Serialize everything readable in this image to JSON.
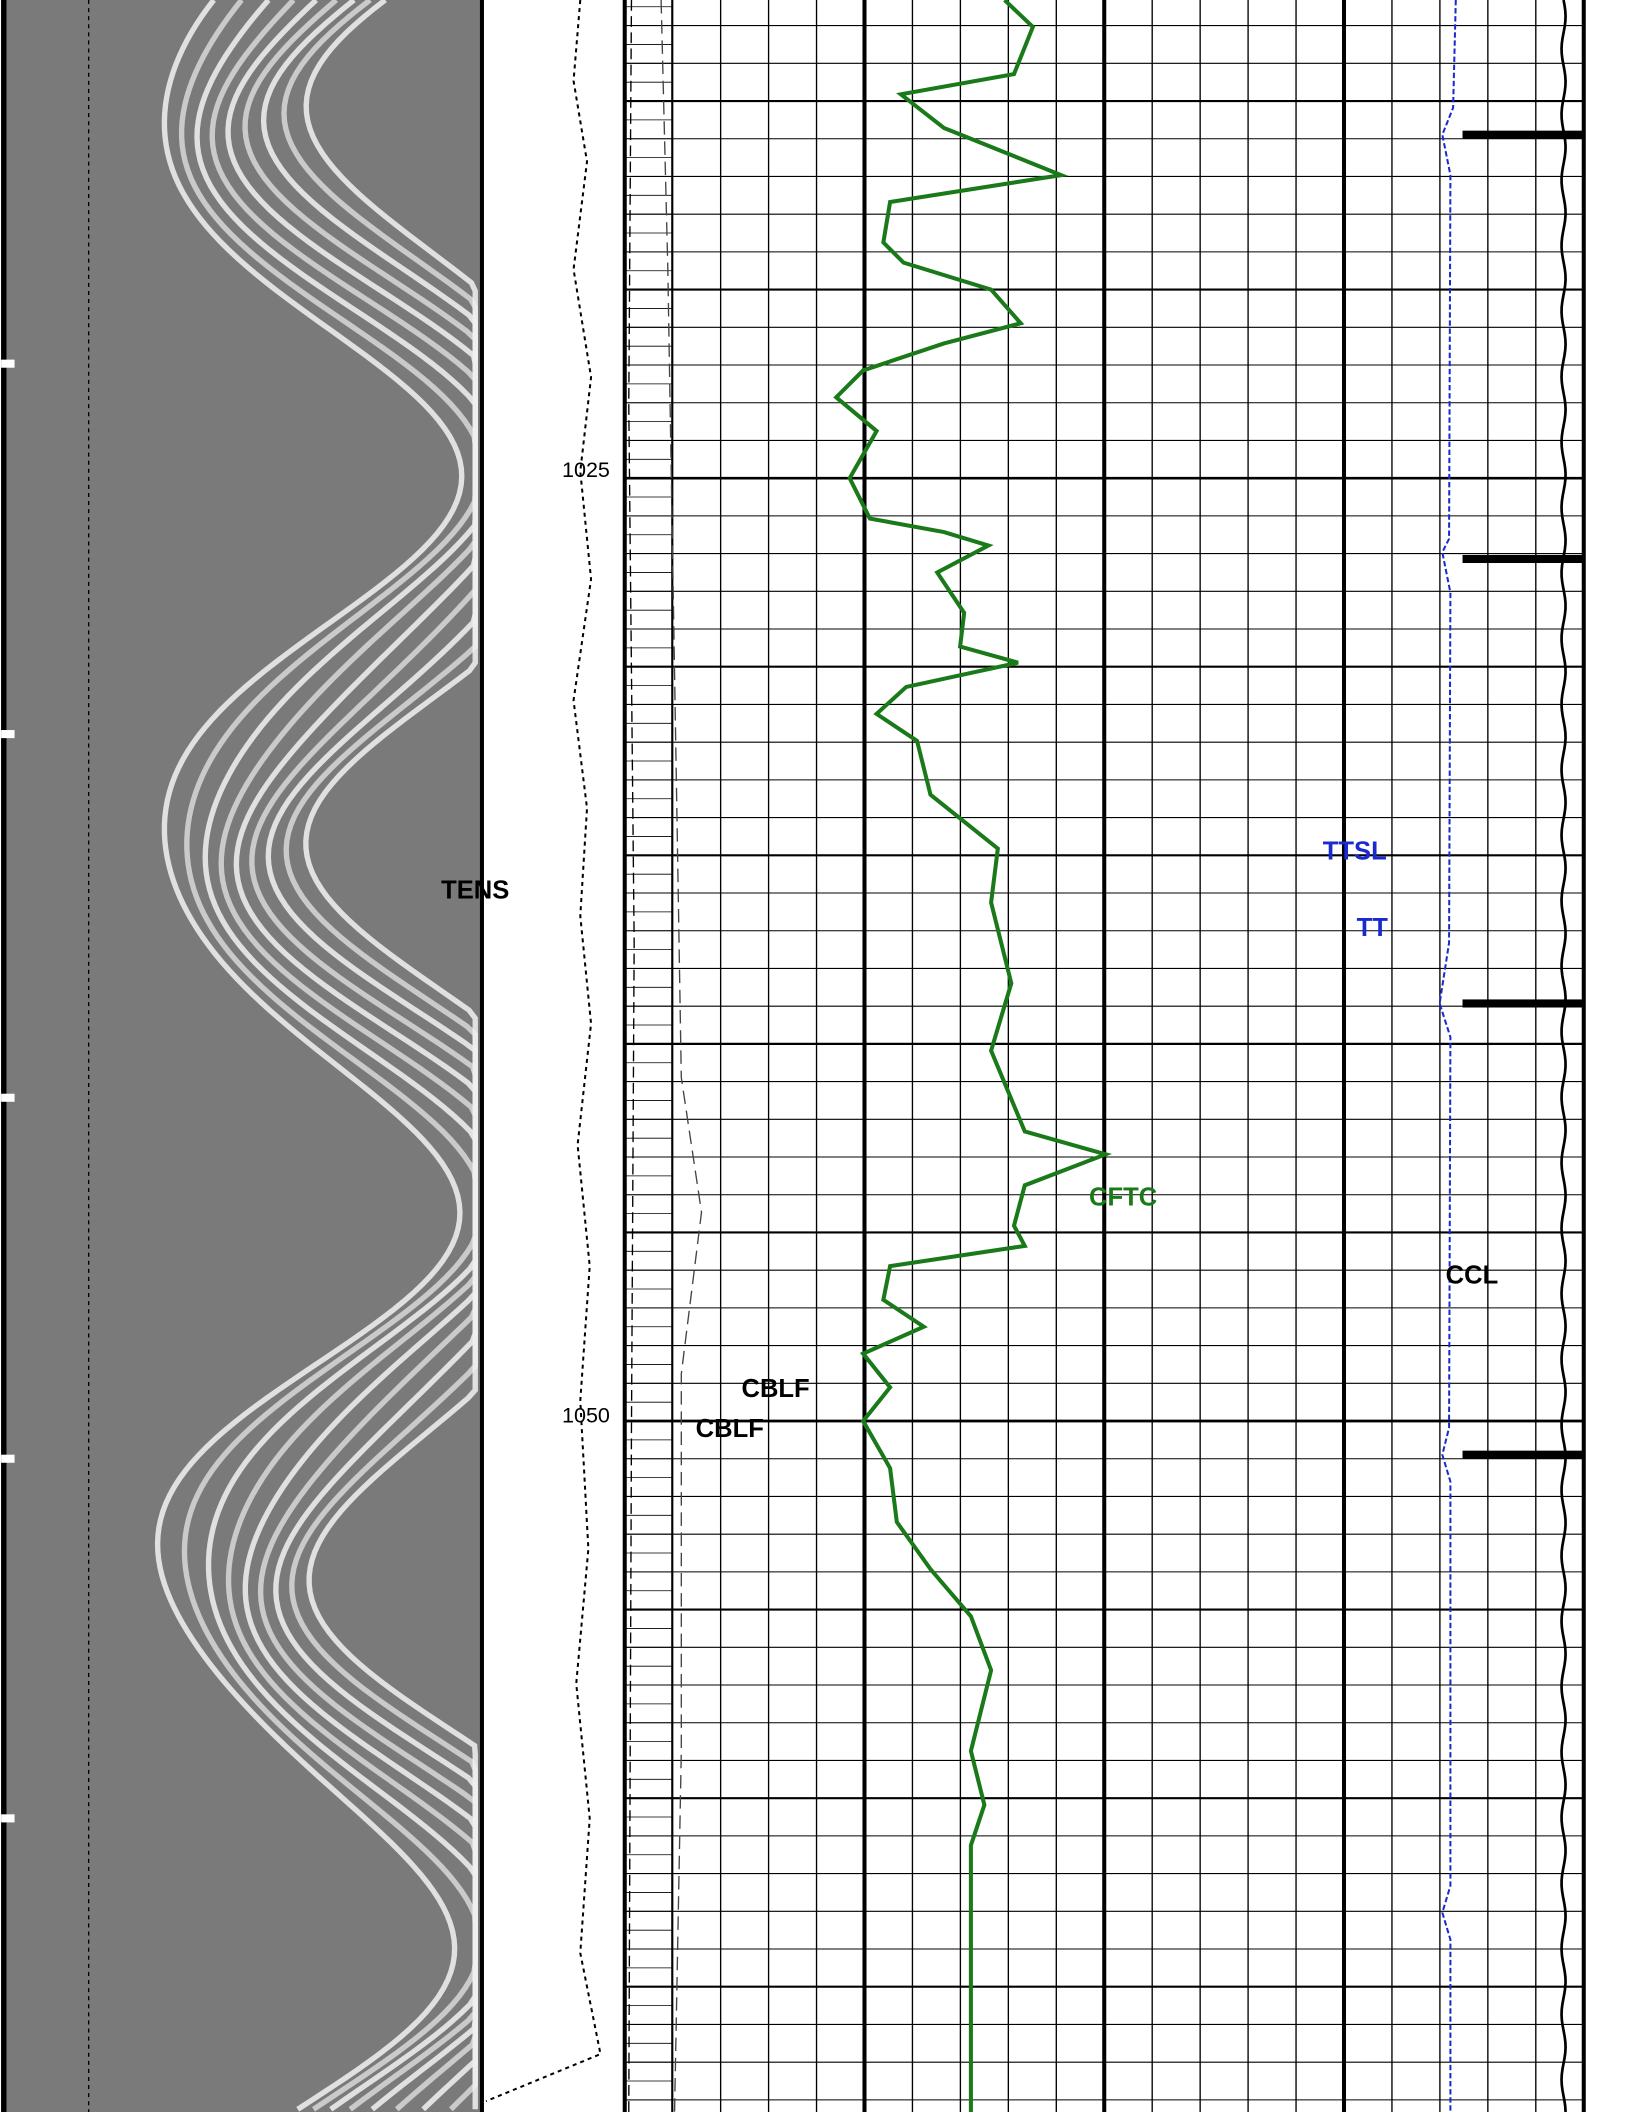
{
  "depth_labels": [
    1025,
    1050
  ],
  "curve_labels": {
    "tens": "TENS",
    "cblf_1": "CBLF",
    "cblf_2": "CBLF",
    "cftc": "CFTC",
    "ttsl": "TTSL",
    "tt": "TT",
    "ccl": "CCL"
  }
}
